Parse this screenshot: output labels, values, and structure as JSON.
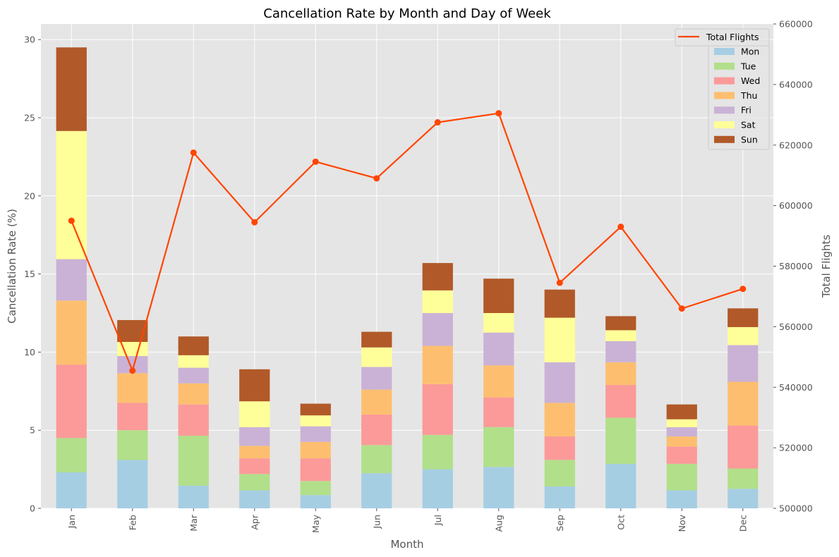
{
  "chart_data": {
    "type": "bar",
    "stacked": true,
    "title": "Cancellation Rate by Month and Day of Week",
    "xlabel": "Month",
    "ylabel": "Cancellation Rate (%)",
    "y2label": "Total Flights",
    "ylim": [
      0,
      31
    ],
    "y2lim": [
      500000,
      660000
    ],
    "yticks": [
      0,
      5,
      10,
      15,
      20,
      25,
      30
    ],
    "y2ticks": [
      500000,
      520000,
      540000,
      560000,
      580000,
      600000,
      620000,
      640000,
      660000
    ],
    "categories": [
      "Jan",
      "Feb",
      "Mar",
      "Apr",
      "May",
      "Jun",
      "Jul",
      "Aug",
      "Sep",
      "Oct",
      "Nov",
      "Dec"
    ],
    "series": [
      {
        "name": "Mon",
        "color": "#a6cee3",
        "values": [
          2.3,
          3.1,
          1.45,
          1.15,
          0.85,
          2.25,
          2.5,
          2.65,
          1.4,
          2.85,
          1.15,
          1.25
        ]
      },
      {
        "name": "Tue",
        "color": "#b2df8a",
        "values": [
          2.2,
          1.9,
          3.2,
          1.05,
          0.9,
          1.8,
          2.2,
          2.55,
          1.7,
          2.95,
          1.7,
          1.3
        ]
      },
      {
        "name": "Wed",
        "color": "#fb9a99",
        "values": [
          4.7,
          1.75,
          2.0,
          1.0,
          1.45,
          1.95,
          3.25,
          1.9,
          1.5,
          2.1,
          1.1,
          2.75
        ]
      },
      {
        "name": "Thu",
        "color": "#fdbf6f",
        "values": [
          4.1,
          1.9,
          1.35,
          0.8,
          1.05,
          1.6,
          2.45,
          2.05,
          2.15,
          1.45,
          0.65,
          2.8
        ]
      },
      {
        "name": "Fri",
        "color": "#cab2d6",
        "values": [
          2.65,
          1.1,
          1.0,
          1.2,
          1.0,
          1.45,
          2.1,
          2.1,
          2.6,
          1.35,
          0.6,
          2.35
        ]
      },
      {
        "name": "Sat",
        "color": "#ffff99",
        "values": [
          8.2,
          0.9,
          0.8,
          1.65,
          0.7,
          1.25,
          1.45,
          1.25,
          2.85,
          0.7,
          0.5,
          1.15
        ]
      },
      {
        "name": "Sun",
        "color": "#b15928",
        "values": [
          5.35,
          1.4,
          1.2,
          2.05,
          0.75,
          1.0,
          1.75,
          2.2,
          1.8,
          0.9,
          0.95,
          1.2
        ]
      }
    ],
    "line": {
      "name": "Total Flights",
      "color": "#ff4500",
      "axis": "secondary",
      "values": [
        595000,
        545500,
        617500,
        594500,
        614500,
        609000,
        627500,
        630500,
        574500,
        593000,
        566000,
        572500
      ]
    },
    "grid": true,
    "legend": "top-right"
  }
}
